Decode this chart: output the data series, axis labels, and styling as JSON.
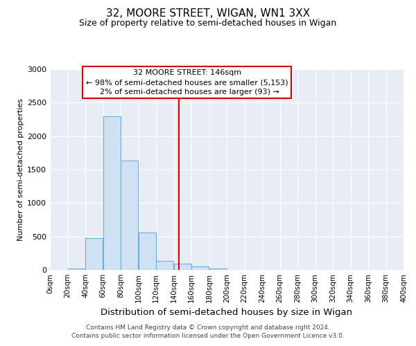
{
  "title": "32, MOORE STREET, WIGAN, WN1 3XX",
  "subtitle": "Size of property relative to semi-detached houses in Wigan",
  "xlabel": "Distribution of semi-detached houses by size in Wigan",
  "ylabel": "Number of semi-detached properties",
  "property_label": "32 MOORE STREET: 146sqm",
  "pct_smaller": 98,
  "count_smaller": 5153,
  "pct_larger": 2,
  "count_larger": 93,
  "bin_edges": [
    0,
    20,
    40,
    60,
    80,
    100,
    120,
    140,
    160,
    180,
    200,
    220,
    240,
    260,
    280,
    300,
    320,
    340,
    360,
    380,
    400
  ],
  "bar_heights": [
    0,
    20,
    480,
    2300,
    1630,
    560,
    130,
    90,
    50,
    20,
    5,
    0,
    0,
    0,
    0,
    0,
    0,
    0,
    0,
    0
  ],
  "bar_color": "#cfe2f3",
  "bar_edge_color": "#6baed6",
  "vline_x": 146,
  "vline_color": "#cc0000",
  "annotation_box_color": "#cc0000",
  "background_color": "#e8edf5",
  "grid_color": "#ffffff",
  "ylim": [
    0,
    3000
  ],
  "yticks": [
    0,
    500,
    1000,
    1500,
    2000,
    2500,
    3000
  ],
  "footer_line1": "Contains HM Land Registry data © Crown copyright and database right 2024.",
  "footer_line2": "Contains public sector information licensed under the Open Government Licence v3.0."
}
